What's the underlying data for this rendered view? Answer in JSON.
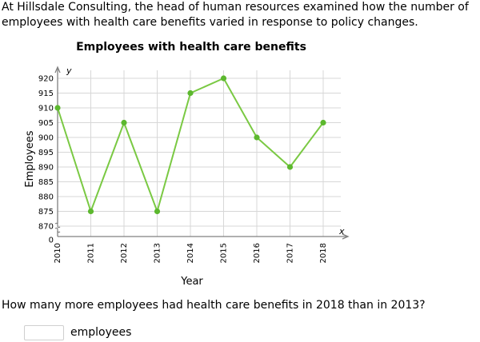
{
  "problem": {
    "intro": "At Hillsdale Consulting, the head of human resources examined how the number of employees with health care benefits varied in response to policy changes.",
    "question": "How many more employees had health care benefits in 2018 than in 2013?",
    "answer": {
      "value": "",
      "placeholder": "",
      "unit": "employees"
    }
  },
  "chart_data": {
    "type": "line",
    "title": "Employees with health care benefits",
    "xlabel": "Year",
    "ylabel": "Employees",
    "x_axis_letter": "x",
    "y_axis_letter": "y",
    "categories": [
      "2010",
      "2011",
      "2012",
      "2013",
      "2014",
      "2015",
      "2016",
      "2017",
      "2018"
    ],
    "values": [
      910,
      875,
      905,
      875,
      915,
      920,
      900,
      890,
      905
    ],
    "ylim": [
      870,
      920
    ],
    "y_ticks": [
      870,
      875,
      880,
      885,
      890,
      895,
      900,
      905,
      910,
      915,
      920
    ],
    "y_break_tick": 0,
    "grid": true,
    "colors": {
      "line": "#7ac943",
      "marker": "#5cb82e",
      "grid": "#d7d7d7",
      "axis": "#808080"
    }
  }
}
